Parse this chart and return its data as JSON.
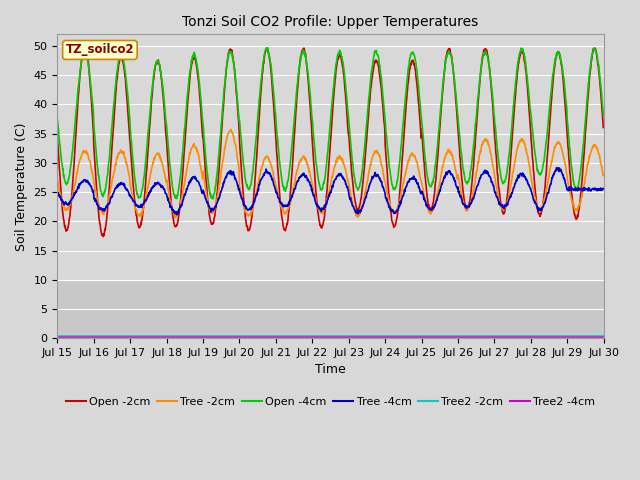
{
  "title": "Tonzi Soil CO2 Profile: Upper Temperatures",
  "xlabel": "Time",
  "ylabel": "Soil Temperature (C)",
  "dataset_label": "TZ_soilco2",
  "ylim": [
    0,
    52
  ],
  "yticks": [
    0,
    5,
    10,
    15,
    20,
    25,
    30,
    35,
    40,
    45,
    50
  ],
  "x_start_day": 15,
  "x_end_day": 30,
  "x_tick_days": [
    15,
    16,
    17,
    18,
    19,
    20,
    21,
    22,
    23,
    24,
    25,
    26,
    27,
    28,
    29,
    30
  ],
  "x_tick_labels": [
    "Jul 15",
    "Jul 16",
    "Jul 17",
    "Jul 18",
    "Jul 19",
    "Jul 20",
    "Jul 21",
    "Jul 22",
    "Jul 23",
    "Jul 24",
    "Jul 25",
    "Jul 26",
    "Jul 27",
    "Jul 28",
    "Jul 29",
    "Jul 30"
  ],
  "series": [
    {
      "label": "Open -2cm",
      "color": "#cc0000",
      "linewidth": 1.2,
      "min_vals": [
        18.5,
        17.5,
        19.0,
        19.0,
        19.5,
        18.5,
        18.5,
        19.0,
        22.0,
        19.0,
        22.0,
        22.0,
        21.5,
        21.0,
        20.5
      ],
      "max_vals": [
        50.0,
        48.0,
        47.5,
        48.0,
        49.5,
        49.5,
        49.5,
        48.5,
        47.5,
        47.5,
        49.5,
        49.5,
        49.0,
        49.0,
        49.5
      ]
    },
    {
      "label": "Tree -2cm",
      "color": "#ff8c00",
      "linewidth": 1.2,
      "min_vals": [
        22.0,
        21.5,
        21.0,
        21.0,
        21.5,
        21.0,
        21.5,
        21.5,
        21.0,
        21.5,
        21.5,
        22.0,
        22.0,
        22.0,
        22.0
      ],
      "max_vals": [
        32.0,
        32.0,
        31.5,
        33.0,
        35.5,
        31.0,
        31.0,
        31.0,
        32.0,
        31.5,
        32.0,
        34.0,
        34.0,
        33.5,
        33.0
      ]
    },
    {
      "label": "Open -4cm",
      "color": "#00cc00",
      "linewidth": 1.2,
      "min_vals": [
        26.5,
        24.5,
        24.0,
        24.0,
        24.0,
        25.5,
        25.5,
        25.5,
        25.5,
        25.5,
        26.0,
        26.5,
        26.5,
        28.0,
        25.5
      ],
      "max_vals": [
        49.0,
        48.5,
        47.5,
        48.5,
        49.0,
        49.5,
        49.0,
        49.0,
        49.0,
        49.0,
        49.0,
        49.0,
        49.5,
        49.0,
        49.5
      ]
    },
    {
      "label": "Tree -4cm",
      "color": "#0000cc",
      "linewidth": 1.2,
      "min_vals": [
        23.0,
        22.0,
        22.5,
        21.5,
        22.0,
        22.0,
        22.5,
        22.0,
        21.5,
        21.5,
        22.0,
        22.5,
        22.5,
        22.0,
        25.5
      ],
      "max_vals": [
        27.0,
        26.5,
        26.5,
        27.5,
        28.5,
        28.5,
        28.0,
        28.0,
        28.0,
        27.5,
        28.5,
        28.5,
        28.0,
        29.0,
        25.5
      ]
    },
    {
      "label": "Tree2 -2cm",
      "color": "#00cccc",
      "linewidth": 1.0,
      "flat_val": 0.4
    },
    {
      "label": "Tree2 -4cm",
      "color": "#cc00cc",
      "linewidth": 1.0,
      "flat_val": 0.2
    }
  ],
  "bg_color": "#d8d8d8",
  "plot_bg_upper_color": "#d8d8d8",
  "plot_bg_lower_color": "#c8c8c8",
  "grid_color": "#ffffff",
  "points_per_day": 96,
  "legend_fontsize": 8,
  "title_fontsize": 10,
  "axis_fontsize": 9,
  "tick_fontsize": 8
}
